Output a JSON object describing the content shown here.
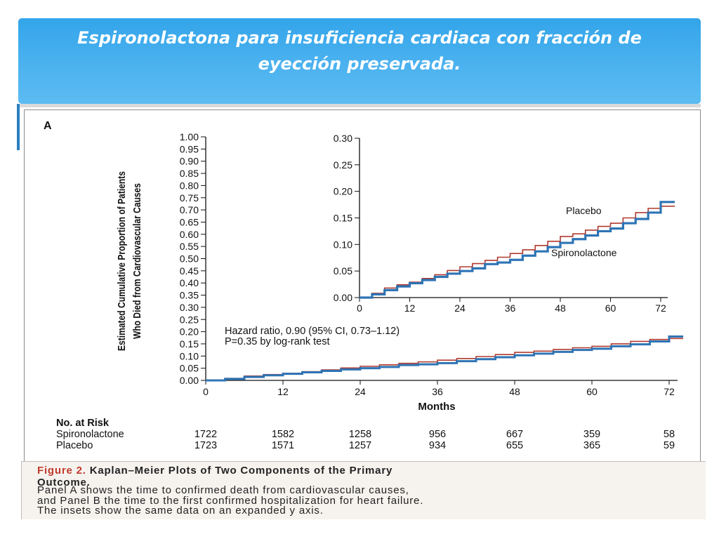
{
  "slide": {
    "title": "Espironolactona para insuficiencia cardiaca con fracción de eyección preservada."
  },
  "chart_data": {
    "type": "line",
    "panel_label": "A",
    "ylabel_line1": "Estimated Cumulative Proportion of Patients",
    "ylabel_line2": "Who Died from Cardiovascular Causes",
    "xlabel": "Months",
    "main": {
      "ylim": [
        0,
        1
      ],
      "yticks": [
        "0.00",
        "0.05",
        "0.10",
        "0.15",
        "0.20",
        "0.25",
        "0.30",
        "0.35",
        "0.40",
        "0.45",
        "0.50",
        "0.55",
        "0.60",
        "0.65",
        "0.70",
        "0.75",
        "0.80",
        "0.85",
        "0.90",
        "0.95",
        "1.00"
      ],
      "xlim": [
        0,
        72
      ],
      "xticks": [
        "0",
        "12",
        "24",
        "36",
        "48",
        "60",
        "72"
      ]
    },
    "inset": {
      "ylim": [
        0,
        0.3
      ],
      "yticks": [
        "0.00",
        "0.05",
        "0.10",
        "0.15",
        "0.20",
        "0.25",
        "0.30"
      ],
      "xlim": [
        0,
        72
      ],
      "xticks": [
        "0",
        "12",
        "24",
        "36",
        "48",
        "60",
        "72"
      ],
      "label_placebo": "Placebo",
      "label_spironolactone": "Spironolactone"
    },
    "stats_line1": "Hazard ratio, 0.90 (95% CI, 0.73–1.12)",
    "stats_line2": "P=0.35 by log-rank test",
    "series": [
      {
        "name": "Placebo",
        "color": "#b03a2e",
        "x": [
          0,
          3,
          6,
          9,
          12,
          15,
          18,
          21,
          24,
          27,
          30,
          33,
          36,
          39,
          42,
          45,
          48,
          51,
          54,
          57,
          60,
          63,
          66,
          69,
          72
        ],
        "y": [
          0.0,
          0.008,
          0.018,
          0.024,
          0.029,
          0.036,
          0.043,
          0.051,
          0.058,
          0.064,
          0.07,
          0.076,
          0.083,
          0.09,
          0.098,
          0.106,
          0.115,
          0.12,
          0.127,
          0.134,
          0.14,
          0.15,
          0.16,
          0.168,
          0.172
        ]
      },
      {
        "name": "Spironolactone",
        "color": "#2e74b5",
        "x": [
          0,
          3,
          6,
          9,
          12,
          15,
          18,
          21,
          24,
          27,
          30,
          33,
          36,
          39,
          42,
          45,
          48,
          51,
          54,
          57,
          60,
          63,
          66,
          69,
          72
        ],
        "y": [
          0.0,
          0.006,
          0.014,
          0.021,
          0.027,
          0.033,
          0.039,
          0.045,
          0.05,
          0.055,
          0.063,
          0.066,
          0.071,
          0.079,
          0.087,
          0.095,
          0.103,
          0.11,
          0.117,
          0.125,
          0.13,
          0.14,
          0.148,
          0.16,
          0.18
        ]
      }
    ],
    "at_risk": {
      "title": "No. at Risk",
      "rows": [
        {
          "label": "Spironolactone",
          "values": [
            "1722",
            "1582",
            "1258",
            "956",
            "667",
            "359",
            "58"
          ]
        },
        {
          "label": "Placebo",
          "values": [
            "1723",
            "1571",
            "1257",
            "934",
            "655",
            "365",
            "59"
          ]
        }
      ]
    }
  },
  "caption": {
    "label": "Figure 2.",
    "heading": "Kaplan–Meier Plots of Two Components of the Primary",
    "heading2": "Outcome.",
    "line1": "Panel A shows the time to confirmed death from cardiovascular causes,",
    "line2": "and Panel B the time to the first confirmed hospitalization for heart failure.",
    "line3": "The insets show the same data on an expanded y axis."
  }
}
